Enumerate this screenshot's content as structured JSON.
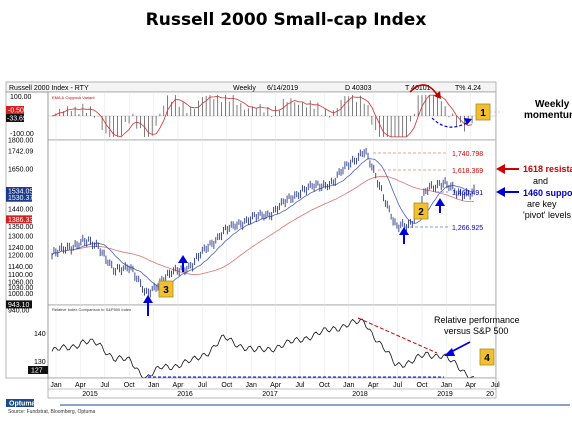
{
  "title": "Russell 2000 Small-cap Index",
  "header": {
    "ticker": "Russell 2000 Index - RTY",
    "freq": "Weekly",
    "date": "6/14/2019",
    "d_code": "D 40303",
    "t_code": "T 40101",
    "t_pct": "T% 4.24"
  },
  "source": "Source: Fundstrat, Bloomberg, Optuma",
  "brand": "Optuma",
  "momentum_panel": {
    "legend": "EMA & Coppock Variant",
    "labels": [
      "100.00",
      "-0.50",
      "-33.69",
      "-100.00"
    ],
    "annotation": "Weekly momentum"
  },
  "price_panel": {
    "y_labels": [
      "1800.00",
      "1742.09",
      "1650.00",
      "1534.05",
      "1530.37",
      "1440.00",
      "1386.33",
      "1350.00",
      "1300.00",
      "1240.00",
      "1200.00",
      "1140.00",
      "1100.00",
      "1060.00",
      "1030.00",
      "1000.00",
      "943.10",
      "940.00"
    ],
    "levels": [
      "1,740.798",
      "1,618.369",
      "1,460.491",
      "1,266.925"
    ],
    "annotation_lines": [
      "1618 resistance",
      "and",
      "1460 support",
      "are key",
      "'pivot' levels"
    ]
  },
  "relative_panel": {
    "legend": "Relative Index Comparison to S&P500 Index",
    "labels": [
      "140",
      "130",
      "127"
    ],
    "annotation_lines": [
      "Relative performance",
      "versus S&P 500"
    ]
  },
  "badges": [
    "1",
    "2",
    "3",
    "4"
  ],
  "x_axis": {
    "months": [
      "Jan",
      "Apr",
      "Jul",
      "Oct",
      "Jan",
      "Apr",
      "Jul",
      "Oct",
      "Jan",
      "Apr",
      "Jul",
      "Oct",
      "Jan",
      "Apr",
      "Jul",
      "Oct",
      "Jan",
      "Apr",
      "Jul"
    ],
    "years": [
      "2015",
      "2016",
      "2017",
      "2018",
      "2019",
      "20"
    ]
  },
  "colors": {
    "red_annotation": "#cc0000",
    "blue_annotation": "#0000dd",
    "badge_fill": "#f0c030",
    "price_bars": "#2a3a8a",
    "ma_blue": "#5060c0",
    "ma_red": "#e07070"
  },
  "chart_data": {
    "type": "line",
    "title": "Russell 2000 Small-cap Index",
    "x": [
      "2015-01",
      "2015-03",
      "2015-06",
      "2015-07",
      "2015-09",
      "2015-12",
      "2016-02",
      "2016-03",
      "2016-05",
      "2016-06",
      "2016-09",
      "2016-11",
      "2017-01",
      "2017-04",
      "2017-06",
      "2017-09",
      "2017-12",
      "2018-02",
      "2018-04",
      "2018-06",
      "2018-08",
      "2018-10",
      "2018-12",
      "2019-01",
      "2019-02",
      "2019-04",
      "2019-05",
      "2019-06"
    ],
    "series": [
      {
        "name": "Russell 2000 Index - RTY",
        "values": [
          1200,
          1240,
          1270,
          1250,
          1110,
          1150,
          990,
          1070,
          1120,
          1150,
          1250,
          1320,
          1370,
          1395,
          1420,
          1480,
          1540,
          1560,
          1580,
          1680,
          1740,
          1560,
          1340,
          1370,
          1540,
          1585,
          1515,
          1534
        ]
      },
      {
        "name": "Relative Index Comparison to S&P500 Index",
        "values": [
          135,
          136,
          138,
          137,
          133,
          132,
          127,
          130,
          131,
          132,
          135,
          139,
          137,
          135,
          136,
          137,
          139,
          140,
          142,
          143,
          144,
          137,
          131,
          132,
          134,
          134,
          130,
          127
        ]
      }
    ],
    "levels": [
      1740.798,
      1618.369,
      1460.491,
      1266.925
    ],
    "ylim": [
      940,
      1800
    ],
    "relative_ylim": [
      127,
      145
    ]
  }
}
